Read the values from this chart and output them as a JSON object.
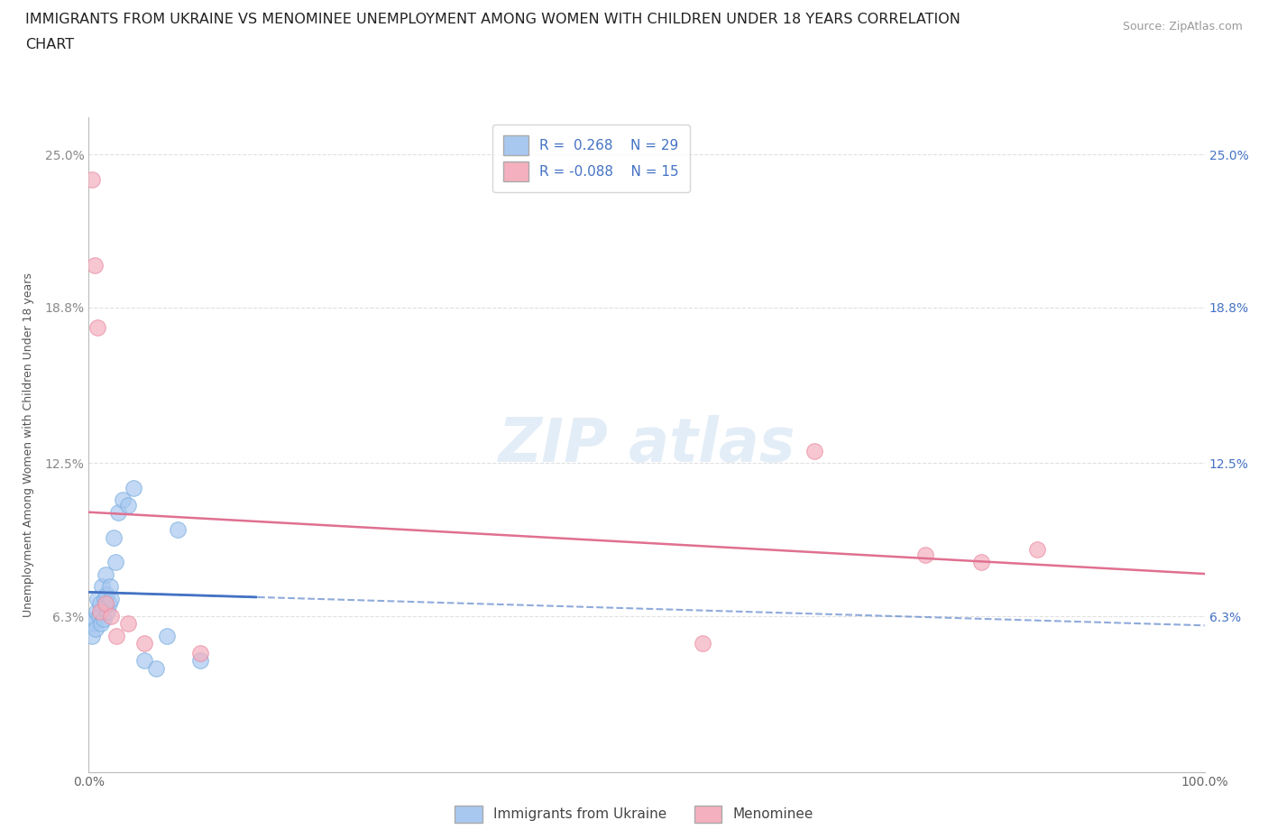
{
  "title_line1": "IMMIGRANTS FROM UKRAINE VS MENOMINEE UNEMPLOYMENT AMONG WOMEN WITH CHILDREN UNDER 18 YEARS CORRELATION",
  "title_line2": "CHART",
  "source": "Source: ZipAtlas.com",
  "ylabel": "Unemployment Among Women with Children Under 18 years",
  "xlim": [
    0,
    100
  ],
  "ylim": [
    0,
    26.5
  ],
  "ytick_positions": [
    0,
    6.3,
    12.5,
    18.8,
    25.0
  ],
  "ytick_labels_left": [
    "",
    "6.3%",
    "12.5%",
    "18.8%",
    "25.0%"
  ],
  "ytick_labels_right": [
    "",
    "6.3%",
    "12.5%",
    "18.8%",
    "25.0%"
  ],
  "xtick_values": [
    0,
    25,
    50,
    75,
    100
  ],
  "xtick_labels": [
    "0.0%",
    "",
    "",
    "",
    "100.0%"
  ],
  "grid_color": "#e0e0e0",
  "background_color": "#ffffff",
  "ukraine_scatter_x": [
    0.3,
    0.4,
    0.5,
    0.6,
    0.7,
    0.8,
    0.9,
    1.0,
    1.1,
    1.2,
    1.3,
    1.4,
    1.5,
    1.6,
    1.7,
    1.8,
    1.9,
    2.0,
    2.2,
    2.4,
    2.6,
    3.0,
    3.5,
    4.0,
    5.0,
    6.0,
    7.0,
    8.0,
    10.0
  ],
  "ukraine_scatter_y": [
    5.5,
    6.0,
    6.2,
    5.8,
    6.5,
    7.0,
    6.3,
    6.8,
    6.0,
    7.5,
    6.2,
    7.0,
    8.0,
    7.2,
    6.5,
    6.8,
    7.5,
    7.0,
    9.5,
    8.5,
    10.5,
    11.0,
    10.8,
    11.5,
    4.5,
    4.2,
    5.5,
    9.8,
    4.5
  ],
  "ukraine_color": "#a8c8f0",
  "ukraine_edge_color": "#7aaee0",
  "ukraine_line_color": "#4472c4",
  "ukraine_R": 0.268,
  "ukraine_N": 29,
  "menominee_scatter_x": [
    0.3,
    0.5,
    0.8,
    1.0,
    1.5,
    2.0,
    2.5,
    3.5,
    5.0,
    10.0,
    55.0,
    65.0,
    75.0,
    80.0,
    85.0
  ],
  "menominee_scatter_y": [
    24.0,
    20.5,
    18.0,
    6.5,
    6.8,
    6.3,
    5.5,
    6.0,
    5.2,
    4.8,
    5.2,
    13.0,
    8.8,
    8.5,
    9.0
  ],
  "menominee_color": "#f4b0be",
  "menominee_edge_color": "#e888a0",
  "menominee_line_color": "#e07090",
  "menominee_R": -0.088,
  "menominee_N": 15,
  "legend_ukraine_label": "Immigrants from Ukraine",
  "legend_menominee_label": "Menominee",
  "title_fontsize": 11.5,
  "source_fontsize": 9
}
